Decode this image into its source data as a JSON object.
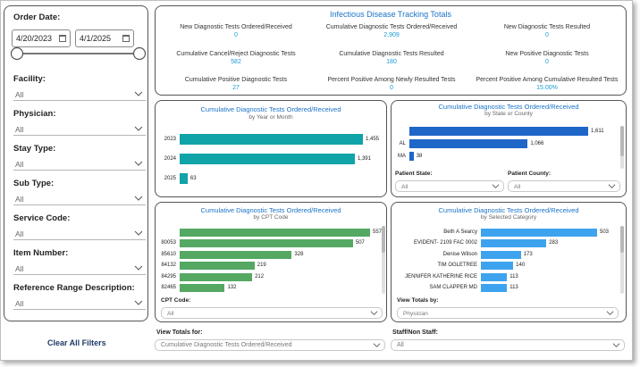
{
  "filters": {
    "order_date_label": "Order Date:",
    "date_from": "4/20/2023",
    "date_to": "4/1/2025",
    "facility_label": "Facility:",
    "facility_value": "All",
    "physician_label": "Physician:",
    "physician_value": "All",
    "stay_type_label": "Stay Type:",
    "stay_type_value": "All",
    "sub_type_label": "Sub Type:",
    "sub_type_value": "All",
    "service_code_label": "Service Code:",
    "service_code_value": "All",
    "item_number_label": "Item Number:",
    "item_number_value": "All",
    "ref_range_label": "Reference Range Description:",
    "ref_range_value": "All",
    "clear_all": "Clear All Filters"
  },
  "totals": {
    "title": "Infectious Disease Tracking Totals",
    "items": [
      {
        "label": "New Diagnostic Tests Ordered/Received",
        "value": "0"
      },
      {
        "label": "Cumulative Diagnostic Tests Ordered/Received",
        "value": "2,909"
      },
      {
        "label": "New Diagnostic Tests Resulted",
        "value": "0"
      },
      {
        "label": "Cumulative Cancel/Reject Diagnostic Tests",
        "value": "582"
      },
      {
        "label": "Cumulative Diagnostic Tests Resulted",
        "value": "180"
      },
      {
        "label": "New Positive Diagnostic Tests",
        "value": "0"
      },
      {
        "label": "Cumulative Positive Diagnostic Tests",
        "value": "27"
      },
      {
        "label": "Percent Positive Among Newly Resulted Tests",
        "value": "0"
      },
      {
        "label": "Percent Positive Among Cumulative Resulted Tests",
        "value": "15.00%"
      }
    ]
  },
  "chart_data": [
    {
      "type": "bar",
      "title": "Cumulative Diagnostic Tests Ordered/Received",
      "subtitle": "by Year or Month",
      "categories": [
        "2023",
        "2024",
        "2025"
      ],
      "values": [
        1455,
        1391,
        63
      ],
      "labels": [
        "1,455",
        "1,391",
        "63"
      ],
      "xlim": [
        0,
        1455
      ],
      "color": "#10a3a8"
    },
    {
      "type": "bar",
      "title": "Cumulative Diagnostic Tests Ordered/Received",
      "subtitle": "by State or County",
      "categories": [
        "",
        "AL",
        "MA"
      ],
      "values": [
        1611,
        1066,
        38
      ],
      "labels": [
        "1,611",
        "1,066",
        "38"
      ],
      "xlim": [
        0,
        1611
      ],
      "color": "#1f66c9"
    },
    {
      "type": "bar",
      "title": "Cumulative Diagnostic Tests Ordered/Received",
      "subtitle": "by CPT Code",
      "categories": [
        "",
        "80053",
        "85610",
        "84132",
        "84295",
        "82465"
      ],
      "values": [
        557,
        507,
        328,
        219,
        212,
        132
      ],
      "labels": [
        "557",
        "507",
        "328",
        "219",
        "212",
        "132"
      ],
      "xlim": [
        0,
        557
      ],
      "color": "#54a862"
    },
    {
      "type": "bar",
      "title": "Cumulative Diagnostic Tests Ordered/Received",
      "subtitle": "by Selected Category",
      "categories": [
        "Beth A Searcy",
        "EVIDENT- 2109 FAC 0002",
        "Denise Wilson",
        "TIM OGLETREE",
        "JENNIFER KATHERINE RICE",
        "SAM CLAPPER MD"
      ],
      "values": [
        503,
        283,
        173,
        140,
        113,
        113
      ],
      "labels": [
        "503",
        "283",
        "173",
        "140",
        "113",
        "113"
      ],
      "xlim": [
        0,
        503
      ],
      "color": "#3ea3ee"
    }
  ],
  "state_panel": {
    "state_label": "Patient State:",
    "state_value": "All",
    "county_label": "Patient County:",
    "county_value": "All"
  },
  "cpt_panel": {
    "cpt_label": "CPT Code:",
    "cpt_value": "All"
  },
  "category_panel": {
    "view_label": "View Totals by:",
    "view_value": "Physician"
  },
  "bottom": {
    "view_totals_label": "View Totals for:",
    "view_totals_value": "Cumulative Diagnostic Tests Ordered/Received",
    "staff_label": "Staff/Non Staff:",
    "staff_value": "All"
  }
}
